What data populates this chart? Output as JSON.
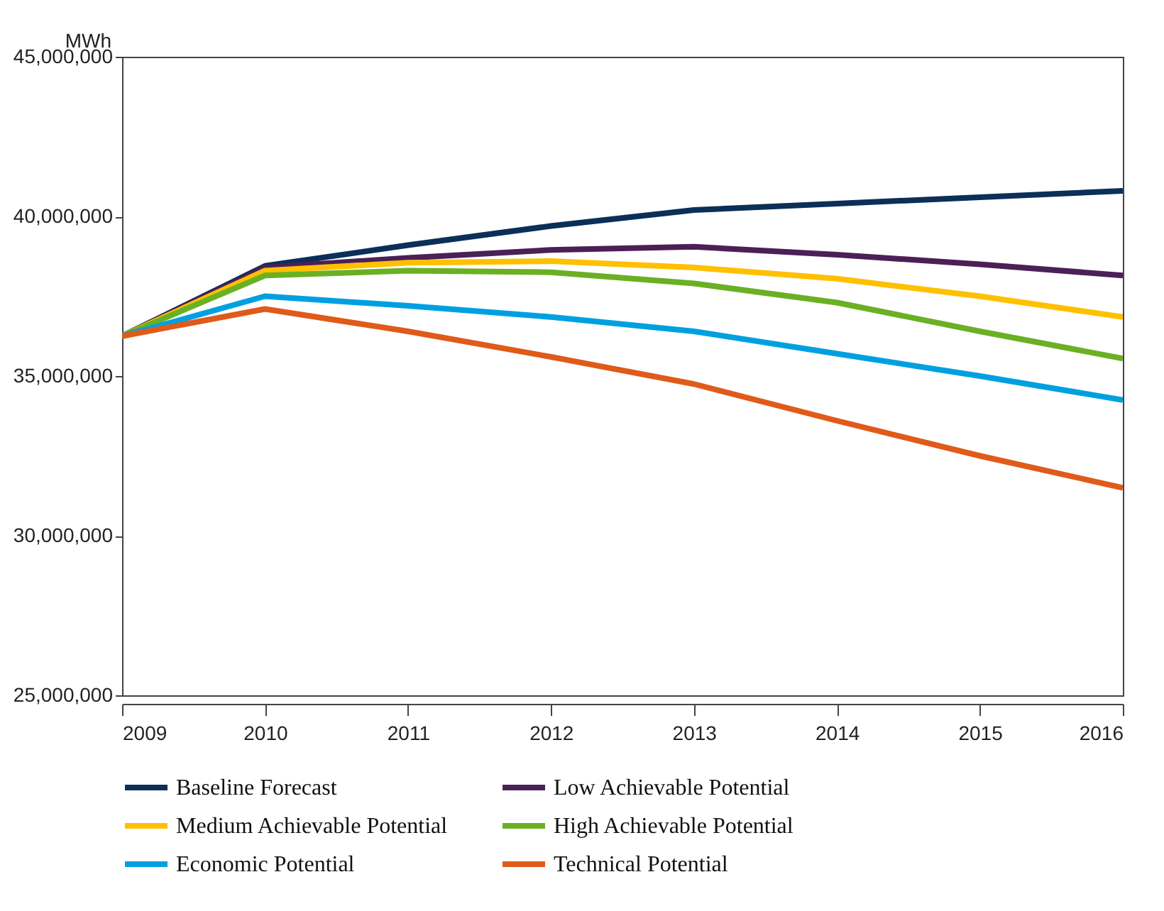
{
  "chart_data": {
    "type": "line",
    "ylabel": "MWh",
    "x": [
      2009,
      2010,
      2011,
      2012,
      2013,
      2014,
      2015,
      2016
    ],
    "xlim": [
      2009,
      2016
    ],
    "xticks": [
      2009,
      2010,
      2011,
      2012,
      2013,
      2014,
      2015,
      2016
    ],
    "ylim": [
      25000000,
      45000000
    ],
    "yticks": [
      {
        "value": 25000000,
        "label": "25,000,000"
      },
      {
        "value": 30000000,
        "label": "30,000,000"
      },
      {
        "value": 35000000,
        "label": "35,000,000"
      },
      {
        "value": 40000000,
        "label": "40,000,000"
      },
      {
        "value": 45000000,
        "label": "45,000,000"
      }
    ],
    "grid": false,
    "legend": "bottom",
    "marker": "none",
    "line_style": "solid",
    "series": [
      {
        "name": "Baseline Forecast",
        "color": "#0b2f57",
        "values": [
          36250000,
          38450000,
          39100000,
          39700000,
          40200000,
          40400000,
          40600000,
          40800000
        ]
      },
      {
        "name": "Low Achievable Potential",
        "color": "#4a2057",
        "values": [
          36250000,
          38400000,
          38700000,
          38950000,
          39050000,
          38800000,
          38500000,
          38150000
        ]
      },
      {
        "name": "Medium Achievable Potential",
        "color": "#ffc000",
        "values": [
          36250000,
          38300000,
          38550000,
          38600000,
          38400000,
          38050000,
          37500000,
          36850000
        ]
      },
      {
        "name": "High Achievable Potential",
        "color": "#6ab023",
        "values": [
          36250000,
          38150000,
          38300000,
          38250000,
          37900000,
          37300000,
          36400000,
          35550000
        ]
      },
      {
        "name": "Economic Potential",
        "color": "#00a0e0",
        "values": [
          36250000,
          37500000,
          37200000,
          36850000,
          36400000,
          35700000,
          35000000,
          34250000
        ]
      },
      {
        "name": "Technical Potential",
        "color": "#e05a1a",
        "values": [
          36250000,
          37100000,
          36400000,
          35600000,
          34750000,
          33600000,
          32500000,
          31500000
        ]
      }
    ]
  }
}
